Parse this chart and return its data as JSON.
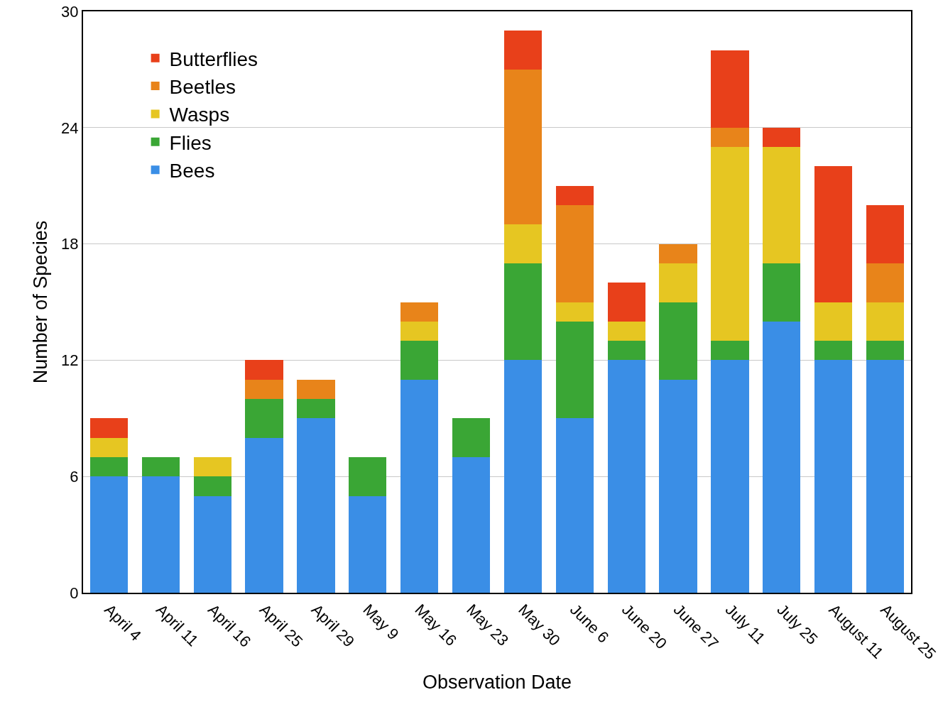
{
  "chart_data": {
    "type": "bar",
    "stacked": true,
    "xlabel": "Observation Date",
    "ylabel": "Number of Species",
    "categories": [
      "April 4",
      "April 11",
      "April 16",
      "April 25",
      "April 29",
      "May 9",
      "May 16",
      "May 23",
      "May 30",
      "June 6",
      "June 20",
      "June 27",
      "July 11",
      "July 25",
      "August 11",
      "August 25"
    ],
    "series": [
      {
        "name": "Bees",
        "color": "#3a8ee6",
        "values": [
          6,
          6,
          5,
          8,
          9,
          5,
          11,
          7,
          12,
          9,
          12,
          11,
          12,
          14,
          12,
          12
        ]
      },
      {
        "name": "Flies",
        "color": "#3aa635",
        "values": [
          1,
          1,
          1,
          2,
          1,
          2,
          2,
          2,
          5,
          5,
          1,
          4,
          1,
          3,
          1,
          1
        ]
      },
      {
        "name": "Wasps",
        "color": "#e6c622",
        "values": [
          1,
          0,
          1,
          0,
          0,
          0,
          1,
          0,
          2,
          1,
          1,
          2,
          10,
          6,
          2,
          2
        ]
      },
      {
        "name": "Beetles",
        "color": "#e8841a",
        "values": [
          0,
          0,
          0,
          1,
          1,
          0,
          1,
          0,
          8,
          5,
          0,
          1,
          1,
          0,
          0,
          2
        ]
      },
      {
        "name": "Butterflies",
        "color": "#e8401a",
        "values": [
          1,
          0,
          0,
          1,
          0,
          0,
          0,
          0,
          2,
          1,
          2,
          0,
          4,
          1,
          7,
          3
        ]
      }
    ],
    "ylim": [
      0,
      30
    ],
    "yticks": [
      0,
      6,
      12,
      18,
      24,
      30
    ],
    "grid": "y",
    "legend": "top left"
  }
}
